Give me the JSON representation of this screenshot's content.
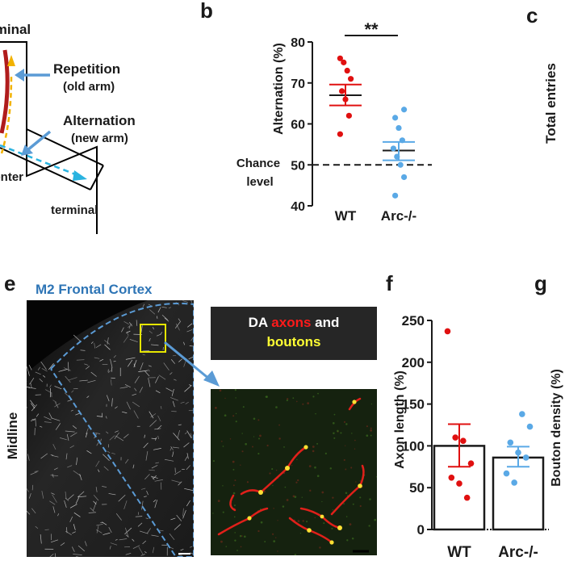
{
  "panel_letters": {
    "b": "b",
    "c": "c",
    "e": "e",
    "f": "f",
    "g": "g"
  },
  "panel_a": {
    "terminal_top": "terminal",
    "repetition_label": "Repetition",
    "repetition_sub": "(old arm)",
    "alternation_label": "Alternation",
    "alternation_sub": "(new arm)",
    "center_label": "center",
    "terminal_bottom": "terminal",
    "colors": {
      "arm_outline": "#000000",
      "old_path": "#f2b200",
      "new_path": "#2ab3e0",
      "rat": "#b01c1c",
      "arrow": "#5b9bd5"
    }
  },
  "panel_c": {
    "ylabel": "Total entries"
  },
  "panel_e": {
    "title": "M2 Frontal Cortex",
    "side_label": "Midline",
    "inset_title_parts": [
      "DA ",
      "axons",
      " and",
      "boutons"
    ],
    "colors": {
      "title": "#2e75b6",
      "outline": "#5b9bd5",
      "inset_box": "#e6e600",
      "axons": "#ff1a1a",
      "boutons": "#ffff33"
    }
  },
  "panel_g": {
    "ylabel": "Bouton density (%)"
  },
  "chart_data": [
    {
      "id": "b",
      "type": "scatter",
      "categories": [
        "WT",
        "Arc-/-"
      ],
      "ylabel": "Alternation (%)",
      "ylim": [
        40,
        80
      ],
      "yticks": [
        "40",
        "50",
        "60",
        "70",
        "80"
      ],
      "reference_line": {
        "value": 50,
        "label_line1": "Chance",
        "label_line2": "level"
      },
      "significance": "**",
      "series": [
        {
          "category": "WT",
          "color": "#e01010",
          "points": [
            76,
            75,
            73,
            71,
            68,
            66,
            62,
            57.5
          ],
          "mean": 67,
          "sem_low": 64.5,
          "sem_high": 69.6
        },
        {
          "category": "Arc-/-",
          "color": "#5aa9e6",
          "points": [
            63.5,
            61.5,
            59,
            56,
            54,
            52,
            50,
            47,
            42.5
          ],
          "mean": 53.5,
          "sem_low": 51.1,
          "sem_high": 55.6
        }
      ]
    },
    {
      "id": "f",
      "type": "bar",
      "categories": [
        "WT",
        "Arc-/-"
      ],
      "ylabel": "Axon length (%)",
      "ylim": [
        0,
        250
      ],
      "yticks": [
        "0",
        "50",
        "100",
        "150",
        "200",
        "250"
      ],
      "series": [
        {
          "category": "WT",
          "color": "#e01010",
          "value": 100,
          "sem_low": 75,
          "sem_high": 126,
          "points": [
            237,
            110,
            106,
            79,
            62,
            55,
            38
          ]
        },
        {
          "category": "Arc-/-",
          "color": "#5aa9e6",
          "value": 86,
          "sem_low": 75,
          "sem_high": 99,
          "points": [
            138,
            123,
            104,
            92,
            86,
            67,
            56
          ]
        }
      ]
    }
  ]
}
